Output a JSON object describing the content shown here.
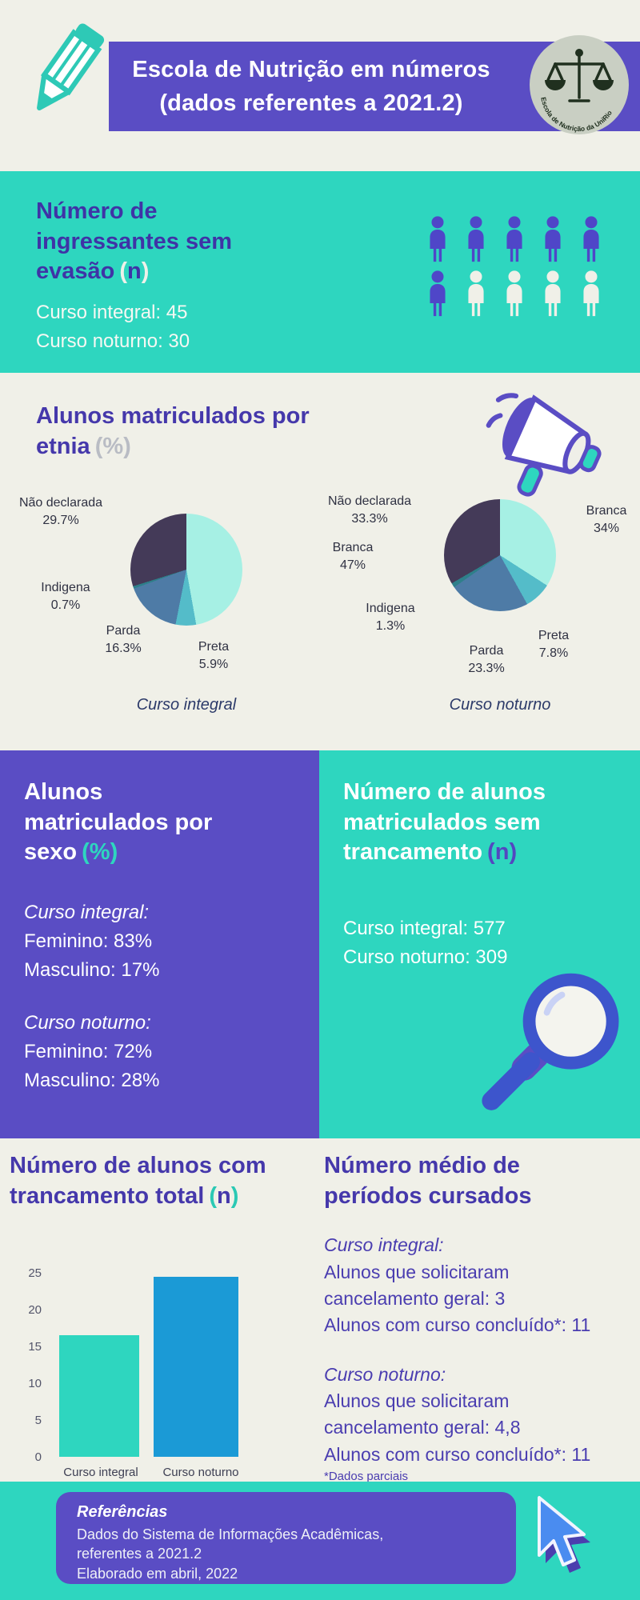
{
  "colors": {
    "purple": "#5a4dc4",
    "teal": "#2ed6bf",
    "cream": "#f0f0e8",
    "title_purple": "#4538ab",
    "bar_blue": "#1b9ad6"
  },
  "header": {
    "title_line1": "Escola de Nutrição em números",
    "title_line2": "(dados referentes a 2021.2)",
    "logo_text": "Escola de Nutrição da UniRio"
  },
  "ingressantes": {
    "title": "Número de ingressantes sem evasão",
    "unit": {
      "open": "(",
      "label": "n",
      "close": ")"
    },
    "lines": [
      "Curso integral: 45",
      "Curso noturno: 30"
    ],
    "pictogram": {
      "purple": 6,
      "white": 4,
      "total": 10,
      "per_row": 5
    }
  },
  "etnia": {
    "title": "Alunos matriculados por etnia",
    "unit": {
      "open": "(",
      "label": "%",
      "close": ")"
    },
    "pies": [
      {
        "caption": "Curso integral",
        "segments": [
          {
            "name": "Branca",
            "pct": "47%"
          },
          {
            "name": "Preta",
            "pct": "5.9%"
          },
          {
            "name": "Parda",
            "pct": "16.3%"
          },
          {
            "name": "Indigena",
            "pct": "0.7%"
          },
          {
            "name": "Não declarada",
            "pct": "29.7%"
          }
        ]
      },
      {
        "caption": "Curso noturno",
        "segments": [
          {
            "name": "Branca",
            "pct": "34%"
          },
          {
            "name": "Preta",
            "pct": "7.8%"
          },
          {
            "name": "Parda",
            "pct": "23.3%"
          },
          {
            "name": "Indigena",
            "pct": "1.3%"
          },
          {
            "name": "Não declarada",
            "pct": "33.3%"
          }
        ]
      }
    ]
  },
  "sexo": {
    "title": "Alunos matriculados por sexo",
    "unit": {
      "open": "(",
      "label": "%",
      "close": ")"
    },
    "groups": [
      {
        "label": "Curso integral:",
        "lines": [
          "Feminino: 83%",
          "Masculino: 17%"
        ]
      },
      {
        "label": "Curso noturno:",
        "lines": [
          "Feminino: 72%",
          "Masculino: 28%"
        ]
      }
    ]
  },
  "trancamento": {
    "title": "Número de alunos matriculados sem trancamento",
    "unit": {
      "open": "(",
      "label": "n",
      "close": ")"
    },
    "lines": [
      "Curso integral: 577",
      "Curso noturno: 309"
    ]
  },
  "trancamento_total": {
    "title": "Número de alunos com trancamento total",
    "unit": {
      "open": "(",
      "label": "n",
      "close": ")"
    }
  },
  "periodos": {
    "title": "Número médio de períodos cursados",
    "groups": [
      {
        "label": "Curso integral:",
        "lines": [
          "Alunos que solicitaram cancelamento geral: 3",
          "Alunos com curso concluído*: 11"
        ]
      },
      {
        "label": "Curso noturno:",
        "lines": [
          "Alunos que solicitaram cancelamento geral: 4,8",
          "Alunos com curso concluído*: 11"
        ]
      }
    ],
    "footnote": "*Dados parciais"
  },
  "footer": {
    "heading": "Referências",
    "lines": [
      "Dados do Sistema de Informações Acadêmicas,",
      "referentes a 2021.2",
      "Elaborado em abril, 2022"
    ]
  },
  "chart_data": [
    {
      "type": "pie",
      "title": "Alunos matriculados por etnia (%) — Curso integral",
      "labels": [
        "Branca",
        "Preta",
        "Parda",
        "Indigena",
        "Não declarada"
      ],
      "values": [
        47,
        5.9,
        16.3,
        0.7,
        29.7
      ],
      "colors": [
        "#a6f0e4",
        "#54bcc9",
        "#4e7ba6",
        "#2e7f8a",
        "#443a58"
      ],
      "unit": "%"
    },
    {
      "type": "pie",
      "title": "Alunos matriculados por etnia (%) — Curso noturno",
      "labels": [
        "Branca",
        "Preta",
        "Parda",
        "Indigena",
        "Não declarada"
      ],
      "values": [
        34,
        7.8,
        23.3,
        1.3,
        33.3
      ],
      "colors": [
        "#a6f0e4",
        "#54bcc9",
        "#4e7ba6",
        "#2e7f8a",
        "#443a58"
      ],
      "unit": "%"
    },
    {
      "type": "bar",
      "title": "Número de alunos com trancamento total (n)",
      "categories": [
        "Curso integral",
        "Curso noturno"
      ],
      "values": [
        16.5,
        24.5
      ],
      "ylim": [
        0,
        25
      ],
      "yticks": [
        0,
        5,
        10,
        15,
        20,
        25
      ],
      "colors": [
        "#2ed6bf",
        "#1b9ad6"
      ],
      "grid": false,
      "legend": false
    }
  ]
}
